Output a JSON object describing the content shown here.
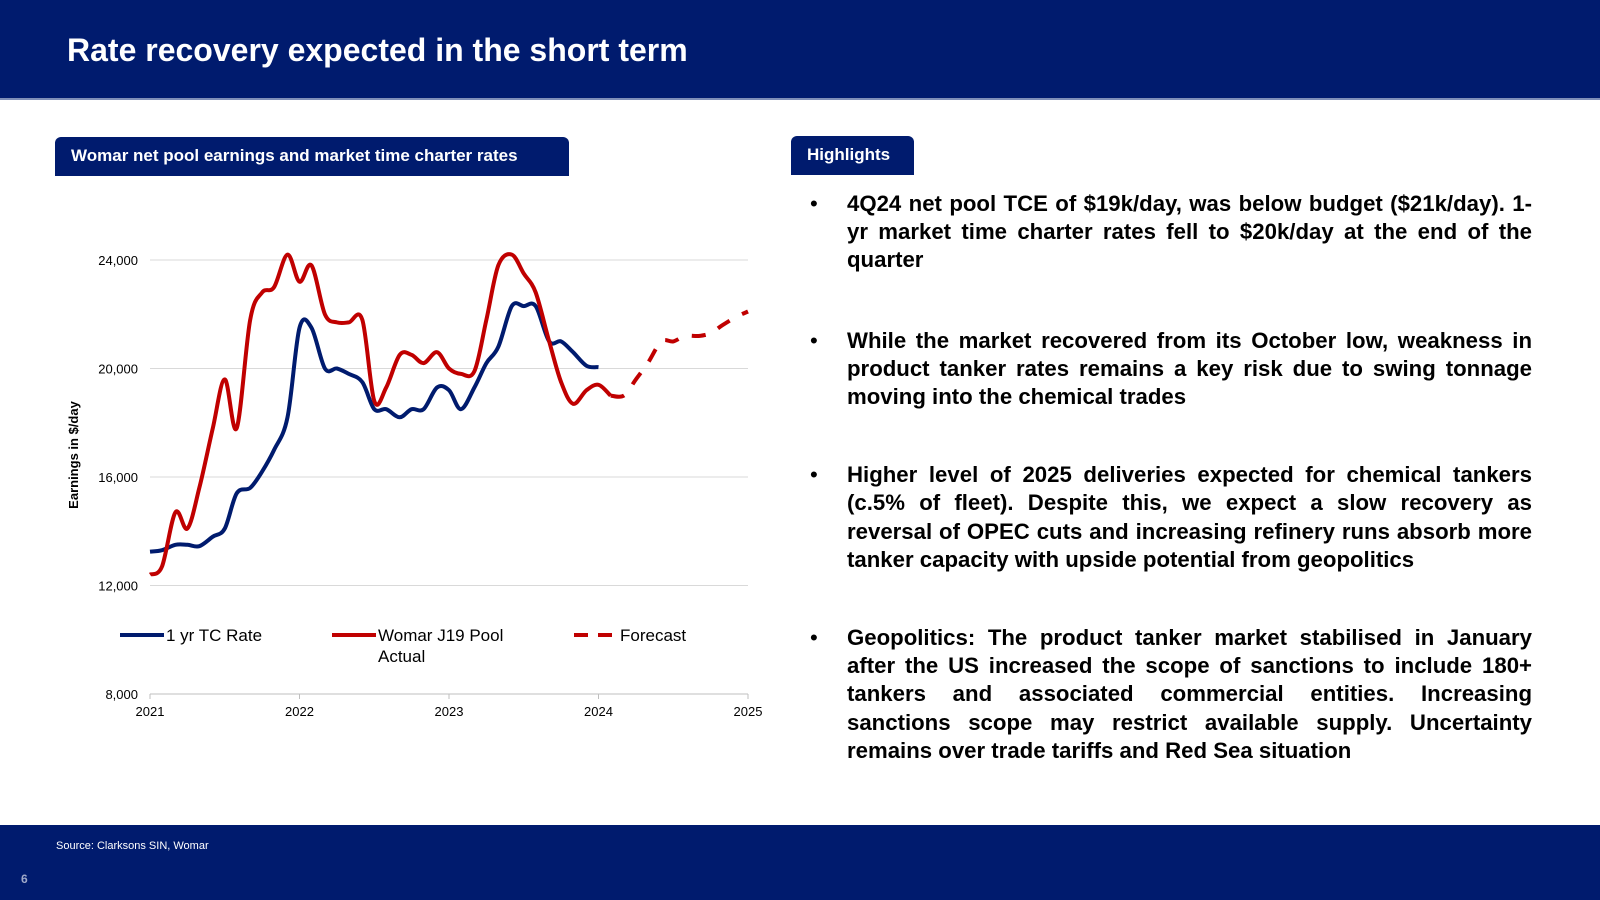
{
  "title": "Rate recovery expected in the short term",
  "chart_tab_label": "Womar net pool earnings and market time charter rates",
  "highlights_tab_label": "Highlights",
  "highlights": [
    "4Q24 net pool TCE of $19k/day, was below budget ($21k/day). 1-yr market time charter rates fell to $20k/day at the end of the quarter",
    "While the market recovered from its October low, weakness in product tanker rates remains a key risk due to swing tonnage moving into the chemical trades",
    "Higher level of 2025 deliveries expected for chemical tankers (c.5% of fleet). Despite this, we expect a slow recovery as reversal of OPEC cuts and increasing refinery runs absorb more tanker capacity with upside potential from geopolitics",
    "Geopolitics: The product tanker market stabilised in January after the US increased the scope of sanctions to include 180+ tankers and associated commercial entities. Increasing sanctions scope may restrict available supply. Uncertainty remains over trade tariffs and Red Sea situation"
  ],
  "bullet_glyph": "•",
  "source": "Source: Clarksons SIN, Womar",
  "page_number": "6",
  "colors": {
    "navy": "#001b6e",
    "red": "#c00000",
    "grid": "#d9d9d9"
  },
  "chart_data": {
    "type": "line",
    "ylabel": "Earnings in $/day",
    "xlabel": "",
    "ylim": [
      8000,
      24000
    ],
    "yticks": [
      8000,
      12000,
      16000,
      20000,
      24000
    ],
    "ytick_labels": [
      "8,000",
      "12,000",
      "16,000",
      "20,000",
      "24,000"
    ],
    "xlim": [
      2021,
      2025
    ],
    "xticks": [
      2021,
      2022,
      2023,
      2024,
      2025
    ],
    "xtick_labels": [
      "2021",
      "2022",
      "2023",
      "2024",
      "2025"
    ],
    "grid": "horizontal",
    "legend": "bottom",
    "series": [
      {
        "name": "1 yr TC Rate",
        "color": "#001b6e",
        "style": "solid",
        "points": [
          [
            2021.0,
            13250
          ],
          [
            2021.08,
            13300
          ],
          [
            2021.17,
            13500
          ],
          [
            2021.25,
            13500
          ],
          [
            2021.33,
            13450
          ],
          [
            2021.42,
            13800
          ],
          [
            2021.5,
            14100
          ],
          [
            2021.58,
            15400
          ],
          [
            2021.67,
            15600
          ],
          [
            2021.75,
            16200
          ],
          [
            2021.83,
            17000
          ],
          [
            2021.92,
            18200
          ],
          [
            2022.0,
            21500
          ],
          [
            2022.08,
            21500
          ],
          [
            2022.17,
            20000
          ],
          [
            2022.25,
            20000
          ],
          [
            2022.33,
            19800
          ],
          [
            2022.42,
            19500
          ],
          [
            2022.5,
            18500
          ],
          [
            2022.58,
            18500
          ],
          [
            2022.67,
            18200
          ],
          [
            2022.75,
            18500
          ],
          [
            2022.83,
            18500
          ],
          [
            2022.92,
            19300
          ],
          [
            2023.0,
            19200
          ],
          [
            2023.08,
            18500
          ],
          [
            2023.17,
            19300
          ],
          [
            2023.25,
            20200
          ],
          [
            2023.33,
            20800
          ],
          [
            2023.42,
            22300
          ],
          [
            2023.5,
            22300
          ],
          [
            2023.58,
            22300
          ],
          [
            2023.67,
            21000
          ],
          [
            2023.75,
            21000
          ],
          [
            2023.83,
            20600
          ],
          [
            2023.92,
            20100
          ],
          [
            2024.0,
            20050
          ]
        ]
      },
      {
        "name": "Womar J19 Pool Actual",
        "color": "#c00000",
        "style": "solid",
        "points": [
          [
            2021.0,
            12400
          ],
          [
            2021.08,
            12700
          ],
          [
            2021.17,
            14700
          ],
          [
            2021.25,
            14100
          ],
          [
            2021.33,
            15600
          ],
          [
            2021.42,
            17800
          ],
          [
            2021.5,
            19600
          ],
          [
            2021.58,
            17800
          ],
          [
            2021.67,
            21800
          ],
          [
            2021.75,
            22800
          ],
          [
            2021.83,
            23000
          ],
          [
            2021.92,
            24200
          ],
          [
            2022.0,
            23200
          ],
          [
            2022.08,
            23800
          ],
          [
            2022.17,
            22000
          ],
          [
            2022.25,
            21700
          ],
          [
            2022.33,
            21700
          ],
          [
            2022.42,
            21800
          ],
          [
            2022.5,
            18800
          ],
          [
            2022.58,
            19300
          ],
          [
            2022.67,
            20500
          ],
          [
            2022.75,
            20500
          ],
          [
            2022.83,
            20200
          ],
          [
            2022.92,
            20600
          ],
          [
            2023.0,
            20000
          ],
          [
            2023.08,
            19800
          ],
          [
            2023.17,
            19900
          ],
          [
            2023.25,
            21800
          ],
          [
            2023.33,
            23800
          ],
          [
            2023.42,
            24200
          ],
          [
            2023.5,
            23500
          ],
          [
            2023.58,
            22800
          ],
          [
            2023.67,
            21000
          ],
          [
            2023.75,
            19500
          ],
          [
            2023.83,
            18700
          ],
          [
            2023.92,
            19200
          ],
          [
            2024.0,
            19400
          ],
          [
            2024.08,
            19000
          ]
        ]
      },
      {
        "name": "Forecast",
        "color": "#c00000",
        "style": "dashed",
        "points": [
          [
            2024.08,
            19000
          ],
          [
            2024.17,
            19000
          ],
          [
            2024.25,
            19600
          ],
          [
            2024.33,
            20200
          ],
          [
            2024.42,
            21000
          ],
          [
            2024.5,
            21000
          ],
          [
            2024.58,
            21200
          ],
          [
            2024.67,
            21200
          ],
          [
            2024.75,
            21300
          ],
          [
            2024.83,
            21600
          ],
          [
            2024.92,
            21900
          ],
          [
            2025.0,
            22100
          ]
        ]
      }
    ]
  }
}
